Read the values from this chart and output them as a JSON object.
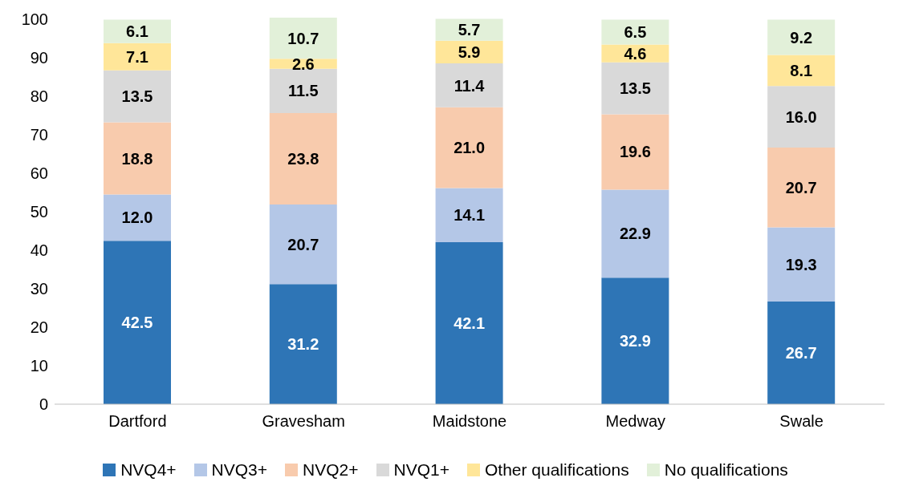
{
  "chart_data": {
    "type": "bar",
    "stacked": true,
    "categories": [
      "Dartford",
      "Gravesham",
      "Maidstone",
      "Medway",
      "Swale"
    ],
    "series": [
      {
        "name": "NVQ4+",
        "color": "#2e75b6",
        "values": [
          42.5,
          31.2,
          42.1,
          32.9,
          26.7
        ],
        "value_labels": [
          "42.5",
          "31.2",
          "42.1",
          "32.9",
          "26.7"
        ]
      },
      {
        "name": "NVQ3+",
        "color": "#b4c7e7",
        "values": [
          12.0,
          20.7,
          14.1,
          22.9,
          19.3
        ],
        "value_labels": [
          "12.0",
          "20.7",
          "14.1",
          "22.9",
          "19.3"
        ]
      },
      {
        "name": "NVQ2+",
        "color": "#f8cbad",
        "values": [
          18.8,
          23.8,
          21.0,
          19.6,
          20.7
        ],
        "value_labels": [
          "18.8",
          "23.8",
          "21.0",
          "19.6",
          "20.7"
        ]
      },
      {
        "name": "NVQ1+",
        "color": "#d9d9d9",
        "values": [
          13.5,
          11.5,
          11.4,
          13.5,
          16.0
        ],
        "value_labels": [
          "13.5",
          "11.5",
          "11.4",
          "13.5",
          "16.0"
        ]
      },
      {
        "name": "Other qualifications",
        "color": "#ffe699",
        "values": [
          7.1,
          2.6,
          5.9,
          4.6,
          8.1
        ],
        "value_labels": [
          "7.1",
          "2.6",
          "5.9",
          "4.6",
          "8.1"
        ]
      },
      {
        "name": "No qualifications",
        "color": "#e2f0d9",
        "values": [
          6.1,
          10.7,
          5.7,
          6.5,
          9.2
        ],
        "value_labels": [
          "6.1",
          "10.7",
          "5.7",
          "6.5",
          "9.2"
        ]
      }
    ],
    "ylim": [
      0,
      100.5
    ],
    "yticks": [
      0,
      10,
      20,
      30,
      40,
      50,
      60,
      70,
      80,
      90,
      100
    ],
    "grid": false,
    "legend": "bottom"
  }
}
